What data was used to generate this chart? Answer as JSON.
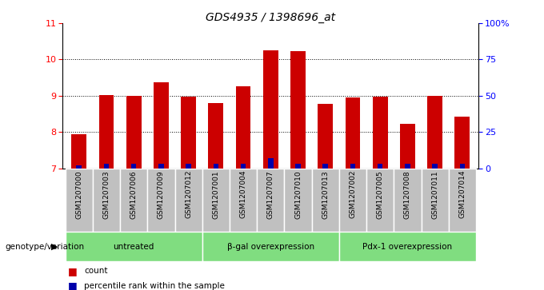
{
  "title": "GDS4935 / 1398696_at",
  "samples": [
    "GSM1207000",
    "GSM1207003",
    "GSM1207006",
    "GSM1207009",
    "GSM1207012",
    "GSM1207001",
    "GSM1207004",
    "GSM1207007",
    "GSM1207010",
    "GSM1207013",
    "GSM1207002",
    "GSM1207005",
    "GSM1207008",
    "GSM1207011",
    "GSM1207014"
  ],
  "counts": [
    7.93,
    9.02,
    9.0,
    9.38,
    8.97,
    8.8,
    9.27,
    10.25,
    10.22,
    8.77,
    8.95,
    8.98,
    8.22,
    9.0,
    8.42
  ],
  "percentiles": [
    2,
    3,
    3,
    3,
    3,
    3,
    3,
    7,
    3,
    3,
    3,
    3,
    3,
    3,
    3
  ],
  "ymin": 7,
  "ymax": 11,
  "yticks": [
    7,
    8,
    9,
    10,
    11
  ],
  "y2ticks": [
    0,
    25,
    50,
    75,
    100
  ],
  "bar_color": "#CC0000",
  "percentile_color": "#0000AA",
  "bar_width": 0.55,
  "bg_color": "#C0C0C0",
  "group_color": "#80DD80",
  "legend_items": [
    "count",
    "percentile rank within the sample"
  ],
  "legend_colors": [
    "#CC0000",
    "#0000AA"
  ],
  "genotype_label": "genotype/variation",
  "group_info": [
    {
      "label": "untreated",
      "xstart": -0.5,
      "xend": 4.5
    },
    {
      "label": "β-gal overexpression",
      "xstart": 4.5,
      "xend": 9.5
    },
    {
      "label": "Pdx-1 overexpression",
      "xstart": 9.5,
      "xend": 14.5
    }
  ]
}
